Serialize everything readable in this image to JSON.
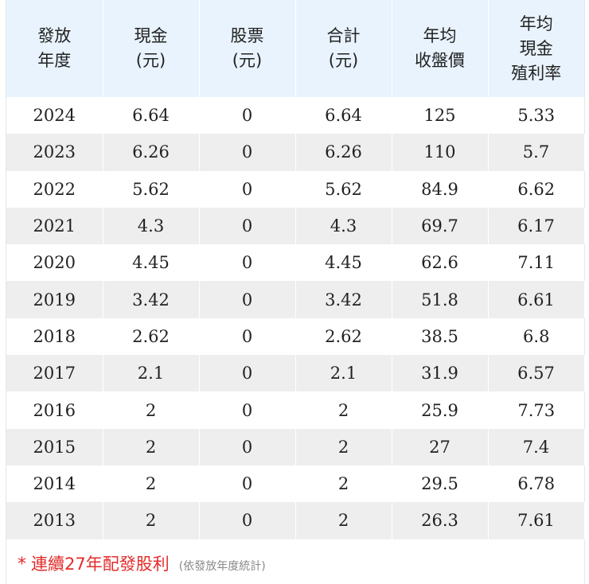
{
  "table": {
    "headers": [
      [
        "發放",
        "年度"
      ],
      [
        "現金",
        "(元)"
      ],
      [
        "股票",
        "(元)"
      ],
      [
        "合計",
        "(元)"
      ],
      [
        "年均",
        "收盤價"
      ],
      [
        "年均",
        "現金",
        "殖利率"
      ]
    ],
    "rows": [
      [
        "2024",
        "6.64",
        "0",
        "6.64",
        "125",
        "5.33"
      ],
      [
        "2023",
        "6.26",
        "0",
        "6.26",
        "110",
        "5.7"
      ],
      [
        "2022",
        "5.62",
        "0",
        "5.62",
        "84.9",
        "6.62"
      ],
      [
        "2021",
        "4.3",
        "0",
        "4.3",
        "69.7",
        "6.17"
      ],
      [
        "2020",
        "4.45",
        "0",
        "4.45",
        "62.6",
        "7.11"
      ],
      [
        "2019",
        "3.42",
        "0",
        "3.42",
        "51.8",
        "6.61"
      ],
      [
        "2018",
        "2.62",
        "0",
        "2.62",
        "38.5",
        "6.8"
      ],
      [
        "2017",
        "2.1",
        "0",
        "2.1",
        "31.9",
        "6.57"
      ],
      [
        "2016",
        "2",
        "0",
        "2",
        "25.9",
        "7.73"
      ],
      [
        "2015",
        "2",
        "0",
        "2",
        "27",
        "7.4"
      ],
      [
        "2014",
        "2",
        "0",
        "2",
        "29.5",
        "6.78"
      ],
      [
        "2013",
        "2",
        "0",
        "2",
        "26.3",
        "7.61"
      ]
    ]
  },
  "footnote": {
    "star": "*",
    "main": "連續27年配發股利",
    "sub": "(依發放年度統計)"
  },
  "colors": {
    "header_bg": "#e8f3fd",
    "stripe_bg": "#eeeeee",
    "accent_red": "#e52b2b",
    "muted_gray": "#8a8a8a"
  }
}
